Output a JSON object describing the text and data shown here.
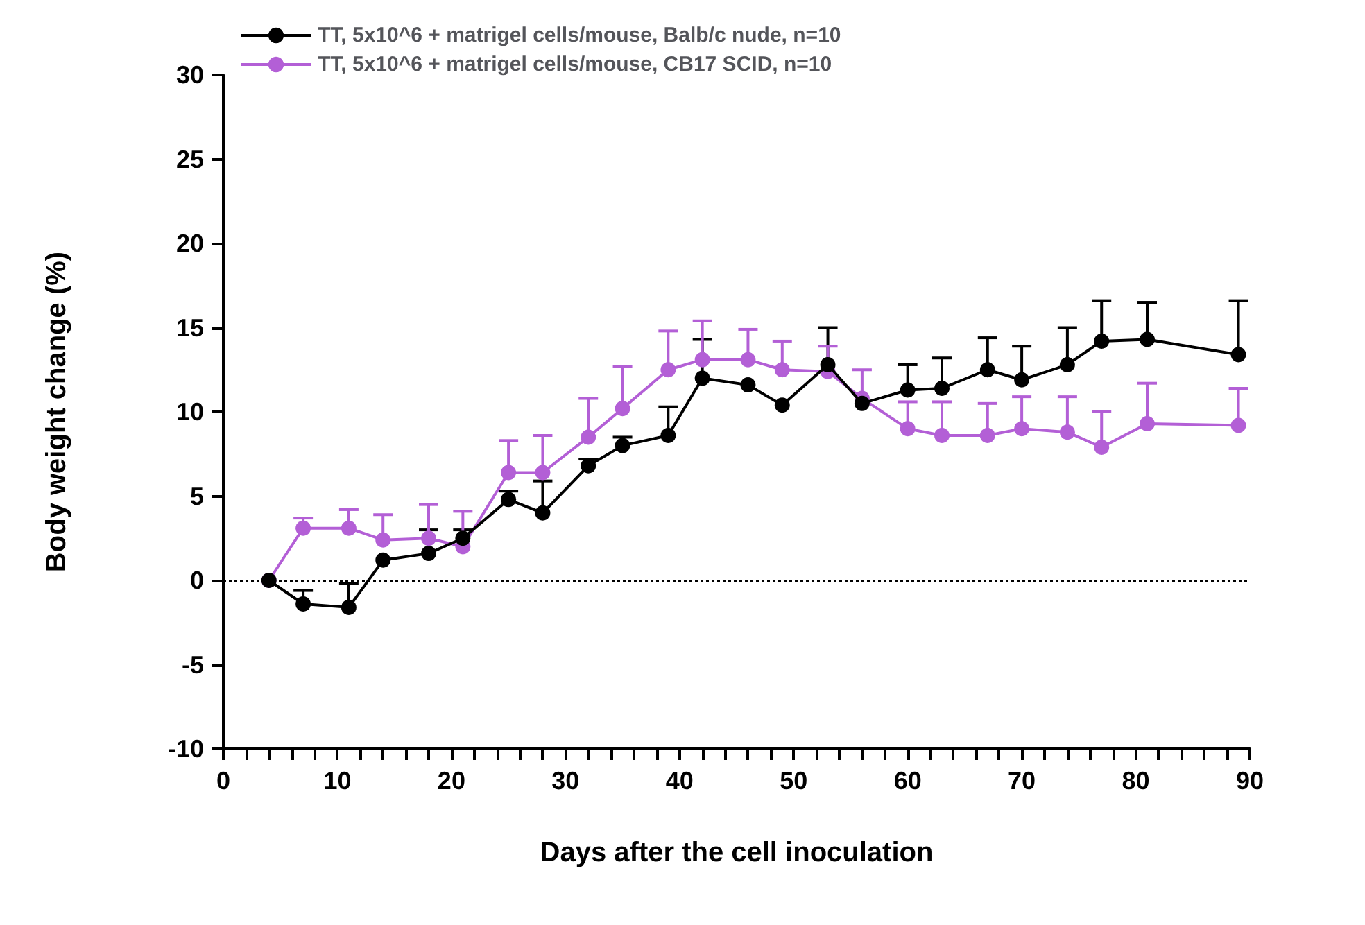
{
  "chart_data": {
    "type": "line",
    "xlabel": "Days after the cell inoculation",
    "ylabel": "Body weight change (%)",
    "x": [
      4,
      7,
      11,
      14,
      18,
      21,
      25,
      28,
      32,
      35,
      39,
      42,
      46,
      49,
      53,
      56,
      60,
      63,
      67,
      70,
      74,
      77,
      81,
      89
    ],
    "series": [
      {
        "name": "TT, 5x10^6 + matrigel cells/mouse, Balb/c nude, n=10",
        "color": "#000000",
        "values": [
          0,
          -1.4,
          -1.6,
          1.2,
          1.6,
          2.5,
          4.8,
          4.0,
          6.8,
          8.0,
          8.6,
          12.0,
          11.6,
          10.4,
          12.8,
          10.5,
          11.3,
          11.4,
          12.5,
          11.9,
          12.8,
          14.2,
          14.3,
          13.4
        ],
        "errors": [
          null,
          [
            -1.4,
            -0.6
          ],
          [
            -1.6,
            -0.2
          ],
          null,
          [
            1.6,
            3.0
          ],
          [
            2.5,
            3.0
          ],
          [
            4.8,
            5.3
          ],
          [
            4.0,
            5.9
          ],
          [
            6.8,
            7.2
          ],
          [
            8.0,
            8.5
          ],
          [
            8.6,
            10.3
          ],
          [
            12.0,
            14.3
          ],
          null,
          null,
          [
            12.8,
            15.0
          ],
          null,
          [
            11.3,
            12.8
          ],
          [
            11.4,
            13.2
          ],
          [
            12.5,
            14.4
          ],
          [
            11.9,
            13.9
          ],
          [
            12.8,
            15.0
          ],
          [
            14.2,
            16.6
          ],
          [
            14.3,
            16.5
          ],
          [
            13.4,
            16.6
          ]
        ]
      },
      {
        "name": "TT, 5x10^6 + matrigel cells/mouse, CB17 SCID, n=10",
        "color": "#b35fd6",
        "values": [
          0,
          3.1,
          3.1,
          2.4,
          2.5,
          2.0,
          6.4,
          6.4,
          8.5,
          10.2,
          12.5,
          13.1,
          13.1,
          12.5,
          12.4,
          10.8,
          9.0,
          8.6,
          8.6,
          9.0,
          8.8,
          7.9,
          9.3,
          9.2
        ],
        "errors": [
          null,
          [
            3.1,
            3.7
          ],
          [
            3.1,
            4.2
          ],
          [
            2.4,
            3.9
          ],
          [
            2.5,
            4.5
          ],
          [
            2.0,
            4.1
          ],
          [
            6.4,
            8.3
          ],
          [
            6.4,
            8.6
          ],
          [
            8.5,
            10.8
          ],
          [
            10.2,
            12.7
          ],
          [
            12.5,
            14.8
          ],
          [
            13.1,
            15.4
          ],
          [
            13.1,
            14.9
          ],
          [
            12.5,
            14.2
          ],
          [
            12.4,
            13.9
          ],
          [
            10.8,
            12.5
          ],
          [
            9.0,
            10.6
          ],
          [
            8.6,
            10.6
          ],
          [
            8.6,
            10.5
          ],
          [
            9.0,
            10.9
          ],
          [
            8.8,
            10.9
          ],
          [
            7.9,
            10.0
          ],
          [
            9.3,
            11.7
          ],
          [
            9.2,
            11.4
          ]
        ]
      }
    ],
    "xlim": [
      0,
      90
    ],
    "xticks": [
      0,
      {
        "value": 2,
        "label": null
      },
      {
        "value": 4,
        "label": null
      },
      {
        "value": 6,
        "label": null
      },
      {
        "value": 8,
        "label": null
      },
      10,
      {
        "value": 12,
        "label": null
      },
      {
        "value": 14,
        "label": null
      },
      {
        "value": 16,
        "label": null
      },
      {
        "value": 18,
        "label": null
      },
      20,
      {
        "value": 22,
        "label": null
      },
      {
        "value": 24,
        "label": null
      },
      {
        "value": 26,
        "label": null
      },
      {
        "value": 28,
        "label": null
      },
      30,
      {
        "value": 32,
        "label": null
      },
      {
        "value": 34,
        "label": null
      },
      {
        "value": 36,
        "label": null
      },
      {
        "value": 38,
        "label": null
      },
      40,
      {
        "value": 42,
        "label": null
      },
      {
        "value": 44,
        "label": null
      },
      {
        "value": 46,
        "label": null
      },
      {
        "value": 48,
        "label": null
      },
      50,
      {
        "value": 52,
        "label": null
      },
      {
        "value": 54,
        "label": null
      },
      {
        "value": 56,
        "label": null
      },
      {
        "value": 58,
        "label": null
      },
      60,
      {
        "value": 62,
        "label": null
      },
      {
        "value": 64,
        "label": null
      },
      {
        "value": 66,
        "label": null
      },
      {
        "value": 68,
        "label": null
      },
      70,
      {
        "value": 72,
        "label": null
      },
      {
        "value": 74,
        "label": null
      },
      {
        "value": 76,
        "label": null
      },
      {
        "value": 78,
        "label": null
      },
      80,
      {
        "value": 82,
        "label": null
      },
      {
        "value": 84,
        "label": null
      },
      {
        "value": 86,
        "label": null
      },
      {
        "value": 88,
        "label": null
      },
      90
    ],
    "ylim": [
      -10,
      30
    ],
    "yticks": [
      -10,
      -5,
      0,
      5,
      10,
      15,
      20,
      25,
      30
    ],
    "ref_lines": [
      {
        "axis": "y",
        "value": 0,
        "line_style": "dotted",
        "color": "#000000"
      }
    ],
    "grid": false,
    "legend": "top",
    "marker": "circle",
    "line_style": "solid"
  }
}
